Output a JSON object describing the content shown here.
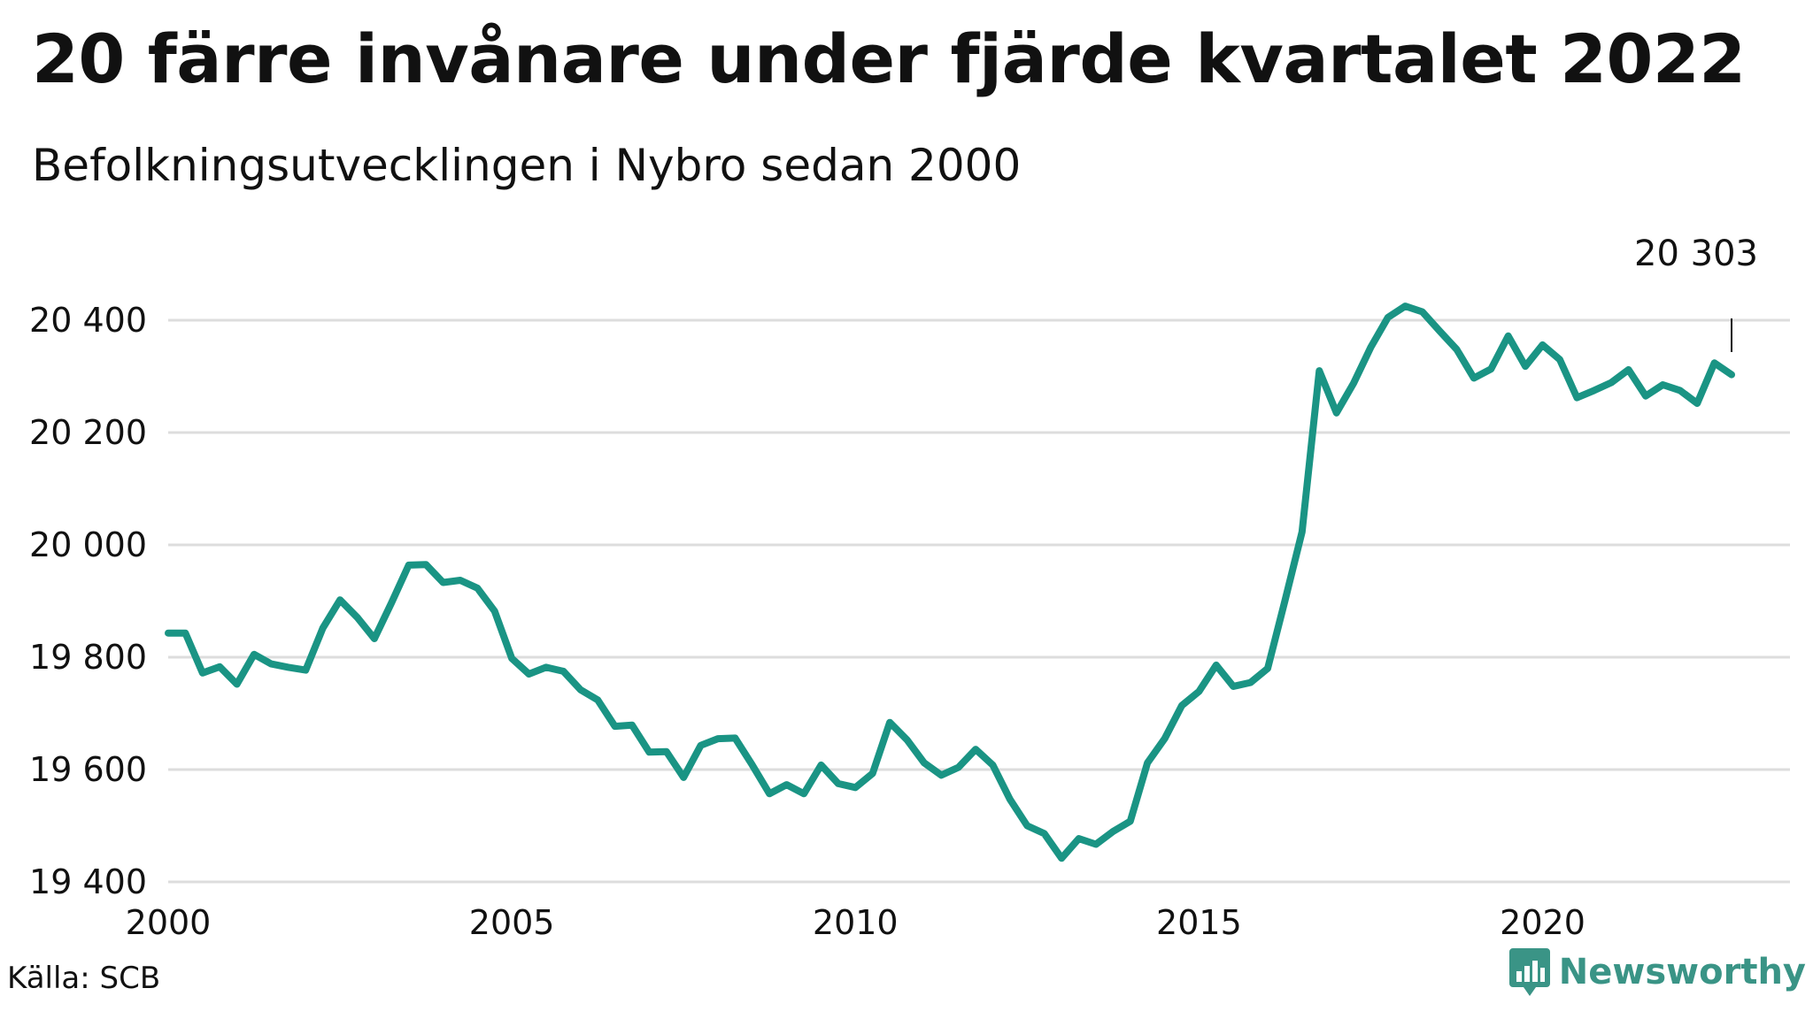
{
  "title": "20 färre invånare under fjärde kvartalet 2022",
  "subtitle": "Befolkningsutvecklingen i Nybro sedan 2000",
  "source": "Källa: SCB",
  "brand": "Newsworthy",
  "colors": {
    "line": "#1a9484",
    "grid": "#dddddd",
    "brand": "#3a9486"
  },
  "chart_data": {
    "type": "line",
    "title": "20 färre invånare under fjärde kvartalet 2022",
    "subtitle": "Befolkningsutvecklingen i Nybro sedan 2000",
    "xlabel": "",
    "ylabel": "",
    "xlim": [
      2000,
      2023.6
    ],
    "ylim": [
      19400,
      20400
    ],
    "x_ticks": [
      2000,
      2005,
      2010,
      2015,
      2020
    ],
    "x_tick_labels": [
      "2000",
      "2005",
      "2010",
      "2015",
      "2020"
    ],
    "y_ticks": [
      19400,
      19600,
      19800,
      20000,
      20200,
      20400
    ],
    "y_tick_labels": [
      "19 400",
      "19 600",
      "19 800",
      "20 000",
      "20 200",
      "20 400"
    ],
    "grid": true,
    "last_value_label": "20 303",
    "series": [
      {
        "x": [
          2000.0,
          2000.25,
          2000.5,
          2000.75,
          2001.0,
          2001.25,
          2001.5,
          2001.75,
          2002.0,
          2002.25,
          2002.5,
          2002.75,
          2003.0,
          2003.25,
          2003.5,
          2003.75,
          2004.0,
          2004.25,
          2004.5,
          2004.75,
          2005.0,
          2005.25,
          2005.5,
          2005.75,
          2006.0,
          2006.25,
          2006.5,
          2006.75,
          2007.0,
          2007.25,
          2007.5,
          2007.75,
          2008.0,
          2008.25,
          2008.5,
          2008.75,
          2009.0,
          2009.25,
          2009.5,
          2009.75,
          2010.0,
          2010.25,
          2010.5,
          2010.75,
          2011.0,
          2011.25,
          2011.5,
          2011.75,
          2012.0,
          2012.25,
          2012.5,
          2012.75,
          2013.0,
          2013.25,
          2013.5,
          2013.75,
          2014.0,
          2014.25,
          2014.5,
          2014.75,
          2015.0,
          2015.25,
          2015.5,
          2015.75,
          2016.0,
          2016.25,
          2016.5,
          2016.75,
          2017.0,
          2017.25,
          2017.5,
          2017.75,
          2018.0,
          2018.25,
          2018.5,
          2018.75,
          2019.0,
          2019.25,
          2019.5,
          2019.75,
          2020.0,
          2020.25,
          2020.5,
          2020.75,
          2021.0,
          2021.25,
          2021.5,
          2021.75,
          2022.0,
          2022.25,
          2022.5,
          2022.75
        ],
        "values": [
          19843,
          19843,
          19772,
          19783,
          19752,
          19805,
          19788,
          19782,
          19777,
          19852,
          19902,
          19871,
          19833,
          19897,
          19964,
          19965,
          19933,
          19937,
          19923,
          19882,
          19798,
          19770,
          19782,
          19775,
          19742,
          19724,
          19677,
          19679,
          19631,
          19632,
          19586,
          19643,
          19655,
          19656,
          19608,
          19557,
          19573,
          19557,
          19608,
          19575,
          19568,
          19593,
          19684,
          19653,
          19612,
          19590,
          19604,
          19636,
          19608,
          19547,
          19500,
          19486,
          19442,
          19477,
          19467,
          19490,
          19508,
          19612,
          19655,
          19714,
          19739,
          19786,
          19748,
          19755,
          19780,
          19900,
          20023,
          20310,
          20235,
          20288,
          20352,
          20405,
          20425,
          20415,
          20381,
          20348,
          20297,
          20313,
          20372,
          20318,
          20356,
          20330,
          20262,
          20275,
          20289,
          20312,
          20265,
          20285,
          20275,
          20252,
          20324,
          20303
        ]
      }
    ]
  }
}
